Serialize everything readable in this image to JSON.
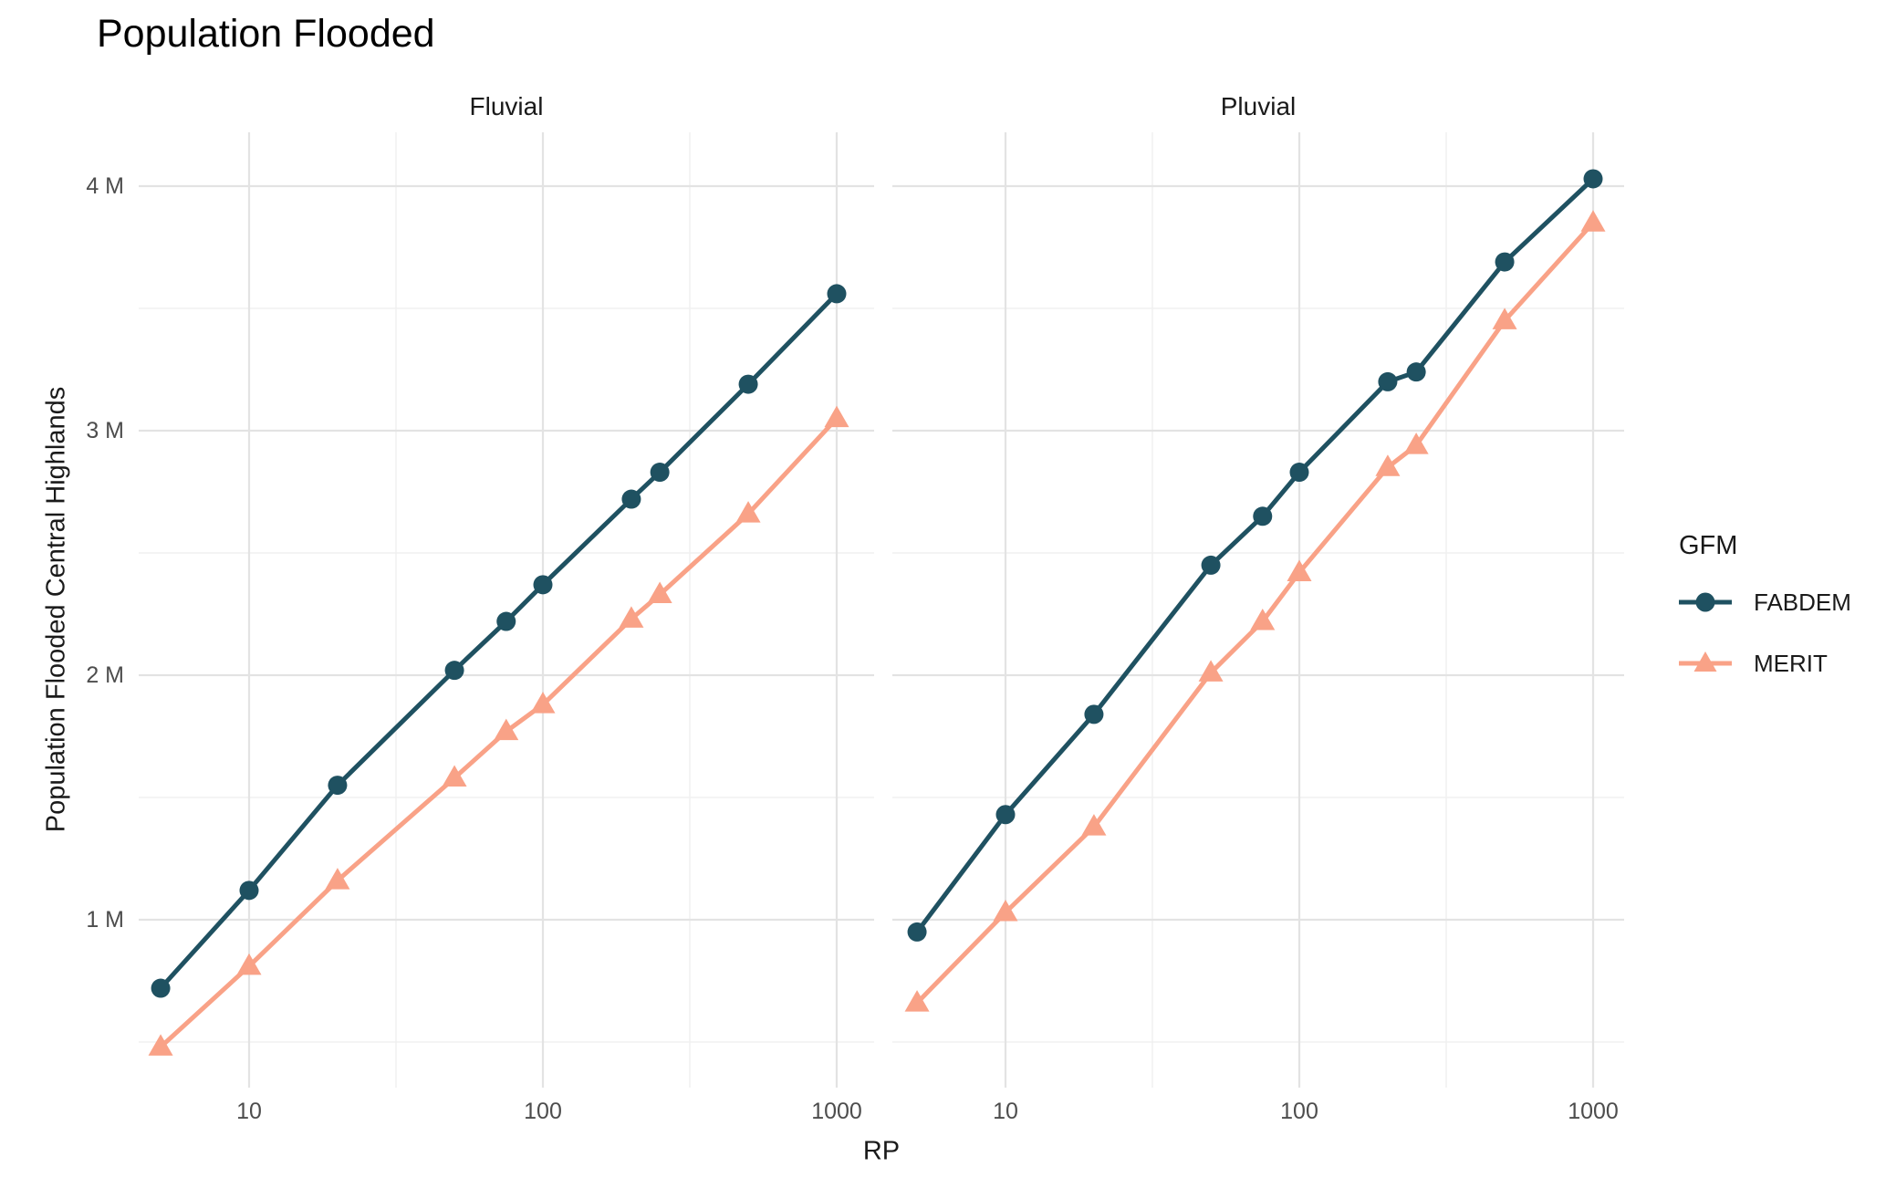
{
  "chart_data": {
    "type": "line",
    "title": "Population Flooded",
    "xlabel": "RP",
    "ylabel": "Population Flooded Central Highlands",
    "x_scale": "log10",
    "grid": true,
    "x": [
      5,
      10,
      20,
      50,
      75,
      100,
      200,
      250,
      500,
      1000
    ],
    "x_ticks": {
      "values": [
        10,
        100,
        1000
      ],
      "labels": [
        "10",
        "100",
        "1000"
      ]
    },
    "x_minor": [
      31.623,
      316.23
    ],
    "y_ticks": {
      "values": [
        1,
        2,
        3,
        4
      ],
      "labels": [
        "1 M",
        "2 M",
        "3 M",
        "4 M"
      ]
    },
    "y_minor": [
      0.5,
      1.5,
      2.5,
      3.5
    ],
    "y_unit": "millions of people",
    "xlim": [
      4.2,
      1290
    ],
    "ylim": [
      0.31,
      4.22
    ],
    "legend": {
      "title": "GFM",
      "position": "right",
      "entries": [
        {
          "label": "FABDEM",
          "color": "#1f5161",
          "marker": "circle"
        },
        {
          "label": "MERIT",
          "color": "#f9a287",
          "marker": "triangle-up"
        }
      ]
    },
    "facets": [
      {
        "label": "Fluvial",
        "series": [
          {
            "name": "FABDEM",
            "color": "#1f5161",
            "marker": "circle",
            "y": [
              0.72,
              1.12,
              1.55,
              2.02,
              2.22,
              2.37,
              2.72,
              2.83,
              3.19,
              3.56
            ]
          },
          {
            "name": "MERIT",
            "color": "#f9a287",
            "marker": "triangle-up",
            "y": [
              0.48,
              0.81,
              1.16,
              1.58,
              1.77,
              1.88,
              2.23,
              2.33,
              2.66,
              3.05
            ]
          }
        ]
      },
      {
        "label": "Pluvial",
        "series": [
          {
            "name": "FABDEM",
            "color": "#1f5161",
            "marker": "circle",
            "y": [
              0.95,
              1.43,
              1.84,
              2.45,
              2.65,
              2.83,
              3.2,
              3.24,
              3.69,
              4.03
            ]
          },
          {
            "name": "MERIT",
            "color": "#f9a287",
            "marker": "triangle-up",
            "y": [
              0.66,
              1.03,
              1.38,
              2.01,
              2.22,
              2.42,
              2.85,
              2.94,
              3.45,
              3.85
            ]
          }
        ]
      }
    ]
  }
}
